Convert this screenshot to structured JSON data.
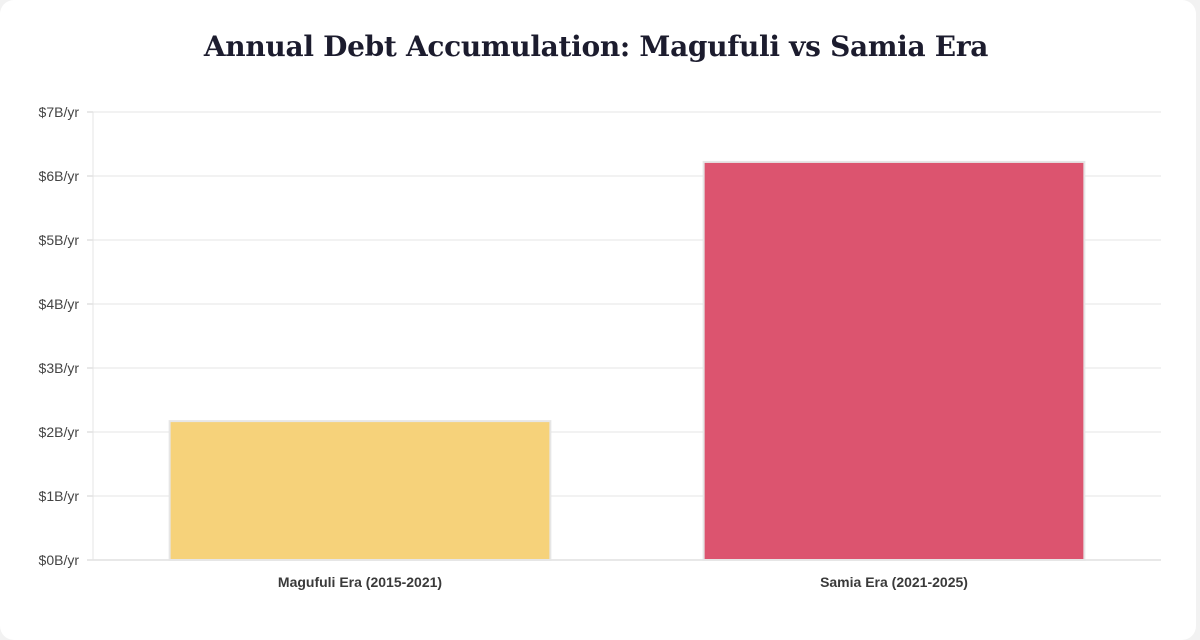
{
  "chart_data": {
    "type": "bar",
    "title": "Annual Debt Accumulation: Magufuli vs Samia Era",
    "xlabel": "",
    "ylabel": "",
    "categories": [
      "Magufuli Era (2015-2021)",
      "Samia Era (2021-2025)"
    ],
    "values": [
      2.17,
      6.22
    ],
    "ylim": [
      0,
      7
    ],
    "yticks": [
      0,
      1,
      2,
      3,
      4,
      5,
      6,
      7
    ],
    "ytick_labels": [
      "$0B/yr",
      "$1B/yr",
      "$2B/yr",
      "$3B/yr",
      "$4B/yr",
      "$5B/yr",
      "$6B/yr",
      "$7B/yr"
    ],
    "grid": true,
    "legend": "none",
    "colors": [
      "#f6d27a",
      "#dc546f"
    ],
    "bar_border_color": "#e6e6e6"
  }
}
